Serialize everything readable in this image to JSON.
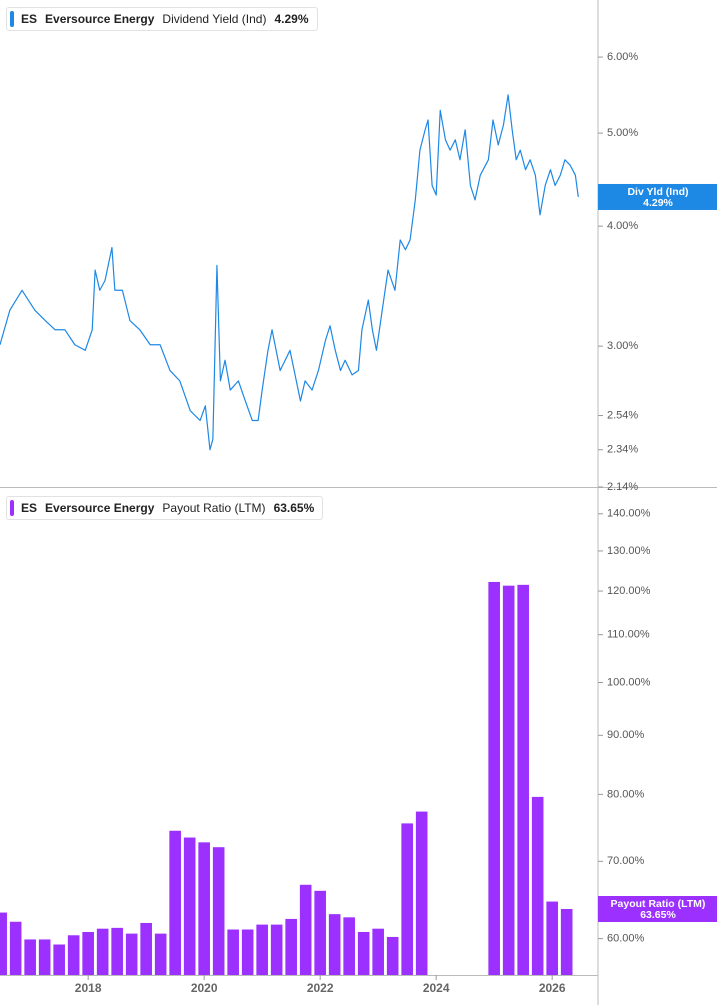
{
  "chart_data": [
    {
      "type": "line",
      "header": {
        "ticker": "ES",
        "company": "Eversource Energy",
        "value": "4.29%"
      },
      "tag": {
        "name": "Div Yld (Ind)",
        "label": "4.29%",
        "value": 4.29
      },
      "log_scale": true,
      "xlim": [
        2016.48,
        2026.79
      ],
      "ylim": [
        2.14,
        6.88
      ],
      "yticks": [
        {
          "value": 2.14,
          "label": "2.14%"
        },
        {
          "value": 2.34,
          "label": "2.34%"
        },
        {
          "value": 2.54,
          "label": "2.54%"
        },
        {
          "value": 3,
          "label": "3.00%"
        },
        {
          "value": 4,
          "label": "4.00%"
        },
        {
          "value": 5,
          "label": "5.00%"
        },
        {
          "value": 6,
          "label": "6.00%"
        }
      ],
      "x": [
        2016.48,
        2016.65,
        2016.86,
        2017.08,
        2017.26,
        2017.43,
        2017.6,
        2017.77,
        2017.95,
        2018.07,
        2018.12,
        2018.2,
        2018.29,
        2018.41,
        2018.46,
        2018.59,
        2018.72,
        2018.89,
        2019.07,
        2019.24,
        2019.41,
        2019.58,
        2019.76,
        2019.93,
        2020.02,
        2020.1,
        2020.15,
        2020.22,
        2020.28,
        2020.36,
        2020.45,
        2020.59,
        2020.71,
        2020.83,
        2020.93,
        2021.0,
        2021.1,
        2021.17,
        2021.31,
        2021.48,
        2021.66,
        2021.74,
        2021.86,
        2021.97,
        2022.09,
        2022.17,
        2022.26,
        2022.35,
        2022.43,
        2022.55,
        2022.66,
        2022.72,
        2022.83,
        2022.9,
        2022.97,
        2023.07,
        2023.17,
        2023.29,
        2023.38,
        2023.47,
        2023.55,
        2023.64,
        2023.72,
        2023.81,
        2023.86,
        2023.93,
        2024.0,
        2024.07,
        2024.16,
        2024.24,
        2024.33,
        2024.41,
        2024.5,
        2024.59,
        2024.67,
        2024.76,
        2024.9,
        2024.98,
        2025.07,
        2025.16,
        2025.24,
        2025.31,
        2025.38,
        2025.45,
        2025.54,
        2025.62,
        2025.71,
        2025.79,
        2025.88,
        2025.97,
        2026.05,
        2026.14,
        2026.22,
        2026.31,
        2026.4,
        2026.45
      ],
      "series": [
        {
          "name": "Dividend Yield (Ind)",
          "color": "#1e88e5",
          "values": [
            3.01,
            3.27,
            3.43,
            3.27,
            3.19,
            3.12,
            3.12,
            3.01,
            2.97,
            3.12,
            3.6,
            3.43,
            3.51,
            3.8,
            3.43,
            3.43,
            3.19,
            3.12,
            3.01,
            3.01,
            2.83,
            2.76,
            2.57,
            2.51,
            2.6,
            2.34,
            2.4,
            3.64,
            2.76,
            2.9,
            2.7,
            2.76,
            2.63,
            2.51,
            2.51,
            2.7,
            2.97,
            3.12,
            2.83,
            2.97,
            2.63,
            2.76,
            2.7,
            2.83,
            3.04,
            3.15,
            2.97,
            2.83,
            2.9,
            2.8,
            2.83,
            3.12,
            3.35,
            3.12,
            2.97,
            3.27,
            3.6,
            3.43,
            3.87,
            3.78,
            3.87,
            4.26,
            4.8,
            5.04,
            5.16,
            4.41,
            4.31,
            5.28,
            4.92,
            4.8,
            4.92,
            4.69,
            5.04,
            4.41,
            4.26,
            4.52,
            4.69,
            5.16,
            4.86,
            5.1,
            5.48,
            5.04,
            4.69,
            4.8,
            4.58,
            4.69,
            4.52,
            4.11,
            4.41,
            4.58,
            4.41,
            4.52,
            4.69,
            4.63,
            4.52,
            4.29
          ]
        }
      ]
    },
    {
      "type": "bar",
      "header": {
        "ticker": "ES",
        "company": "Eversource Energy",
        "value": "63.65%"
      },
      "tag": {
        "name": "Payout Ratio (LTM)",
        "label": "63.65%",
        "value": 63.65
      },
      "log_scale": true,
      "xlim": [
        2016.48,
        2026.79
      ],
      "ylim": [
        55.8,
        146.8
      ],
      "xticks": [
        2018,
        2020,
        2022,
        2024,
        2026
      ],
      "yticks": [
        {
          "value": 60,
          "label": "60.00%"
        },
        {
          "value": 70,
          "label": "70.00%"
        },
        {
          "value": 80,
          "label": "80.00%"
        },
        {
          "value": 90,
          "label": "90.00%"
        },
        {
          "value": 100,
          "label": "100.00%"
        },
        {
          "value": 110,
          "label": "110.00%"
        },
        {
          "value": 120,
          "label": "120.00%"
        },
        {
          "value": 130,
          "label": "130.00%"
        },
        {
          "value": 140,
          "label": "140.00%"
        }
      ],
      "x": [
        2016.5,
        2016.75,
        2017.0,
        2017.25,
        2017.5,
        2017.75,
        2018.0,
        2018.25,
        2018.5,
        2018.75,
        2019.0,
        2019.25,
        2019.5,
        2019.75,
        2020.0,
        2020.25,
        2020.5,
        2020.75,
        2021.0,
        2021.25,
        2021.5,
        2021.75,
        2022.0,
        2022.25,
        2022.5,
        2022.75,
        2023.0,
        2023.25,
        2023.5,
        2023.75,
        2024.0,
        2024.25,
        2024.5,
        2024.75,
        2025.0,
        2025.25,
        2025.5,
        2025.75,
        2026.0,
        2026.25
      ],
      "series": [
        {
          "name": "Payout Ratio (LTM)",
          "color": "#9b30ff",
          "values": [
            63.2,
            62.05,
            59.9,
            59.9,
            59.3,
            60.4,
            60.8,
            61.2,
            61.3,
            60.6,
            61.9,
            60.6,
            74.4,
            73.4,
            72.7,
            72.0,
            61.1,
            61.1,
            61.7,
            61.7,
            62.4,
            66.8,
            66.0,
            63.0,
            62.6,
            60.8,
            61.2,
            60.2,
            75.5,
            77.3,
            null,
            null,
            null,
            null,
            122.2,
            121.3,
            121.5,
            79.6,
            64.6,
            63.65
          ]
        }
      ]
    }
  ]
}
